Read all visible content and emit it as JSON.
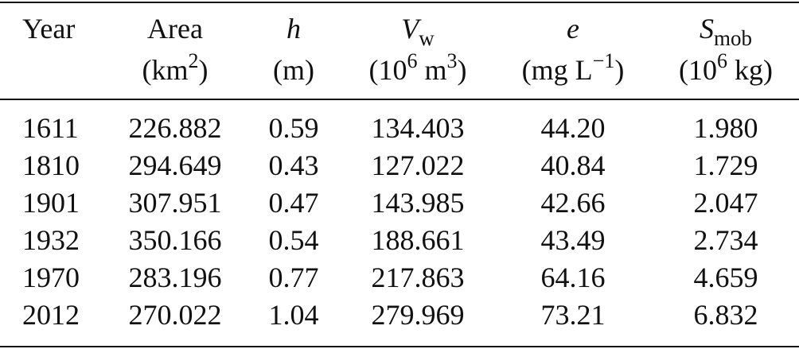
{
  "table": {
    "columns": [
      {
        "name": "Year",
        "symbol": "",
        "subscript": "",
        "unit_pre": "",
        "unit_sup": "",
        "unit_post": "",
        "unit_exp": ""
      },
      {
        "name": "Area",
        "symbol": "",
        "subscript": "",
        "unit_pre": "(km",
        "unit_sup": "2",
        "unit_post": ")",
        "unit_exp": ""
      },
      {
        "name": "",
        "symbol": "h",
        "subscript": "",
        "unit_pre": "(m)",
        "unit_sup": "",
        "unit_post": "",
        "unit_exp": ""
      },
      {
        "name": "",
        "symbol": "V",
        "subscript": "w",
        "unit_pre": "(10",
        "unit_sup": "6",
        "unit_post": " m",
        "unit_exp": "3",
        "unit_close": ")"
      },
      {
        "name": "",
        "symbol": "e",
        "subscript": "",
        "unit_pre": "(mg L",
        "unit_sup": "−1",
        "unit_post": ")",
        "unit_exp": ""
      },
      {
        "name": "",
        "symbol": "S",
        "subscript": "mob",
        "unit_pre": "(10",
        "unit_sup": "6",
        "unit_post": " kg)",
        "unit_exp": ""
      }
    ],
    "rows": [
      [
        "1611",
        "226.882",
        "0.59",
        "134.403",
        "44.20",
        "1.980"
      ],
      [
        "1810",
        "294.649",
        "0.43",
        "127.022",
        "40.84",
        "1.729"
      ],
      [
        "1901",
        "307.951",
        "0.47",
        "143.985",
        "42.66",
        "2.047"
      ],
      [
        "1932",
        "350.166",
        "0.54",
        "188.661",
        "43.49",
        "2.734"
      ],
      [
        "1970",
        "283.196",
        "0.77",
        "217.863",
        "64.16",
        "4.659"
      ],
      [
        "2012",
        "270.022",
        "1.04",
        "279.969",
        "73.21",
        "6.832"
      ]
    ]
  }
}
